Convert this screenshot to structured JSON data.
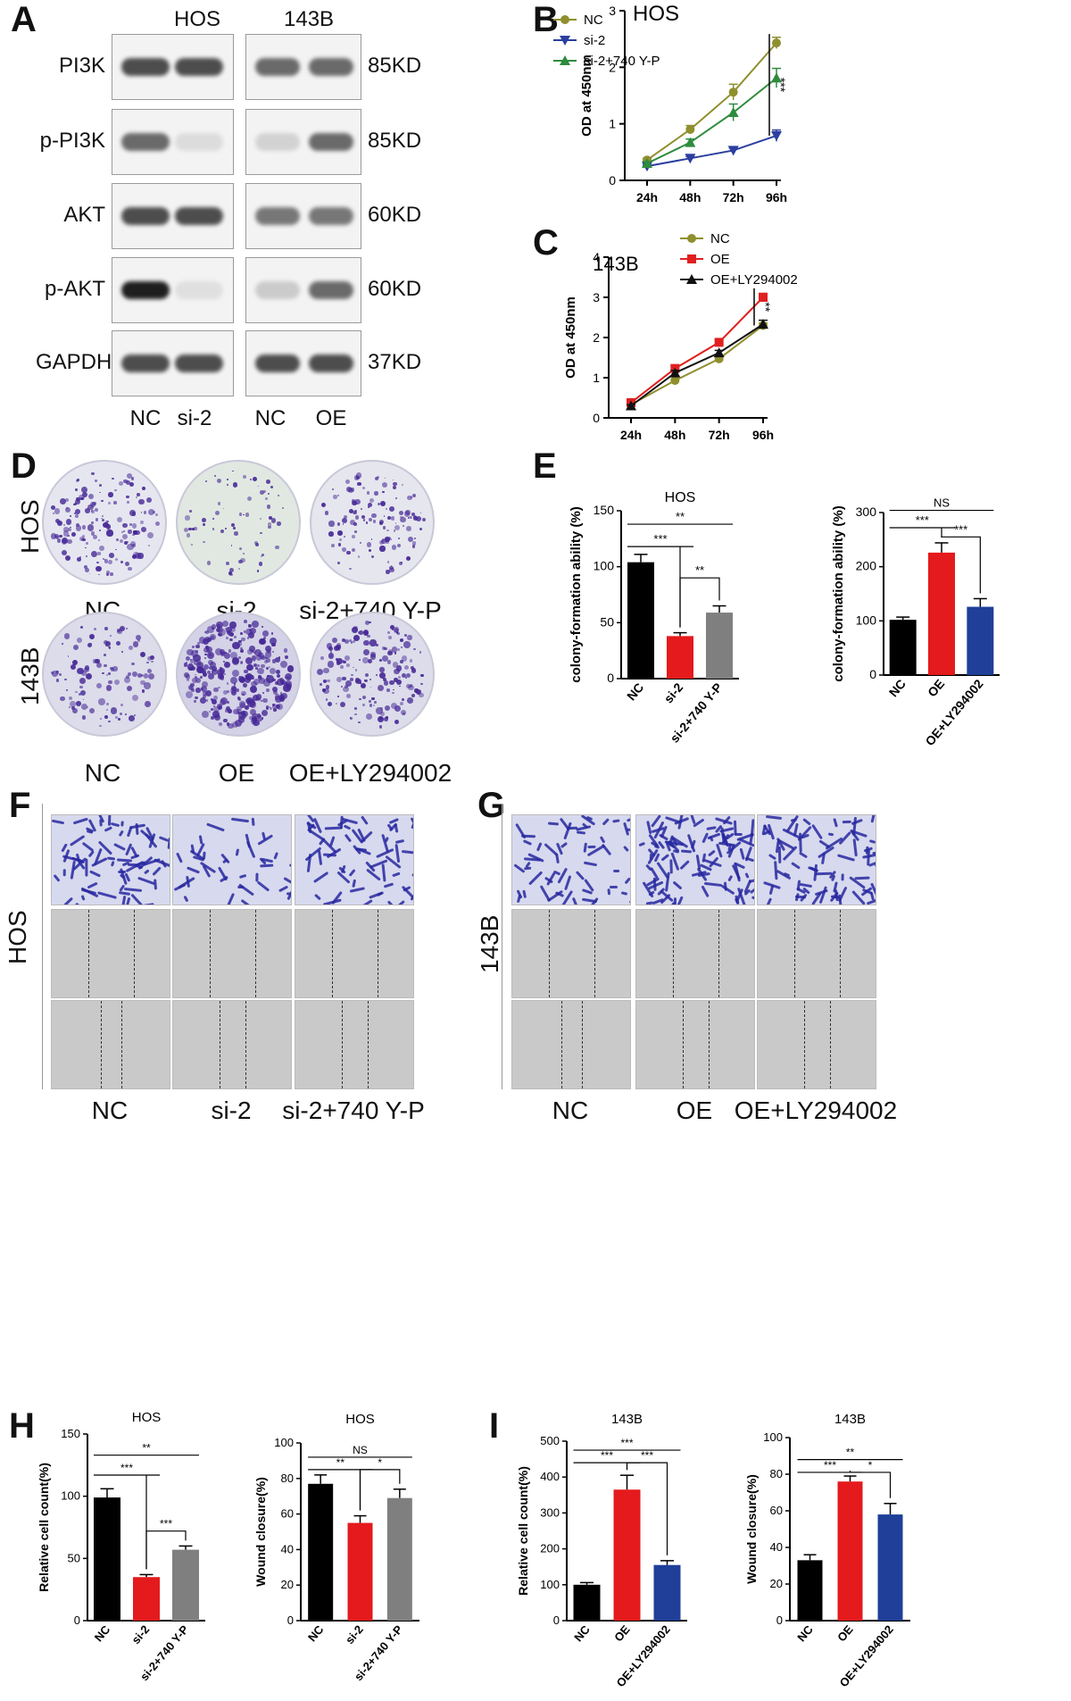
{
  "panels": {
    "A": "A",
    "B": "B",
    "C": "C",
    "D": "D",
    "E": "E",
    "F": "F",
    "G": "G",
    "H": "H",
    "I": "I"
  },
  "western_blot": {
    "cell_lines": [
      "HOS",
      "143B"
    ],
    "proteins": [
      {
        "name": "PI3K",
        "size": "85KD"
      },
      {
        "name": "p-PI3K",
        "size": "85KD"
      },
      {
        "name": "AKT",
        "size": "60KD"
      },
      {
        "name": "p-AKT",
        "size": "60KD"
      },
      {
        "name": "GAPDH",
        "size": "37KD"
      }
    ],
    "lanes": [
      "NC",
      "si-2",
      "NC",
      "OE"
    ],
    "band_intensity": [
      [
        0.85,
        0.85,
        0.75,
        0.75
      ],
      [
        0.75,
        0.18,
        0.25,
        0.75
      ],
      [
        0.85,
        0.85,
        0.7,
        0.7
      ],
      [
        1.0,
        0.15,
        0.3,
        0.75
      ],
      [
        0.85,
        0.85,
        0.85,
        0.85
      ]
    ]
  },
  "colony": {
    "rows": [
      "HOS",
      "143B"
    ],
    "row1_labels": [
      "NC",
      "si-2",
      "si-2+740 Y-P"
    ],
    "row2_labels": [
      "NC",
      "OE",
      "OE+LY294002"
    ]
  },
  "migration": {
    "F_side": "HOS",
    "G_side": "143B",
    "F_labels": [
      "NC",
      "si-2",
      "si-2+740 Y-P"
    ],
    "G_labels": [
      "NC",
      "OE",
      "OE+LY294002"
    ]
  },
  "chart_data": [
    {
      "id": "B",
      "type": "line",
      "title": "HOS",
      "ylabel": "OD at 450nm",
      "xlabel": "",
      "categories": [
        "24h",
        "48h",
        "72h",
        "96h"
      ],
      "ylim": [
        0,
        3
      ],
      "yticks": [
        0,
        1,
        2,
        3
      ],
      "series": [
        {
          "name": "NC",
          "values": [
            0.36,
            0.9,
            1.56,
            2.43
          ],
          "errors": [
            0.03,
            0.07,
            0.14,
            0.1
          ],
          "color": "#8f8f2e",
          "marker": "circle"
        },
        {
          "name": "si-2",
          "values": [
            0.25,
            0.39,
            0.53,
            0.79
          ],
          "errors": [
            0.02,
            0.03,
            0.04,
            0.1
          ],
          "color": "#2a3fa0",
          "marker": "triangle-down"
        },
        {
          "name": "si-2+740 Y-P",
          "values": [
            0.3,
            0.67,
            1.2,
            1.81
          ],
          "errors": [
            0.03,
            0.06,
            0.15,
            0.17
          ],
          "color": "#2e8b3e",
          "marker": "triangle-up"
        }
      ],
      "significance": "***"
    },
    {
      "id": "C",
      "type": "line",
      "title": "143B",
      "ylabel": "OD at 450nm",
      "xlabel": "",
      "categories": [
        "24h",
        "48h",
        "72h",
        "96h"
      ],
      "ylim": [
        0,
        4
      ],
      "yticks": [
        0,
        1,
        2,
        3,
        4
      ],
      "series": [
        {
          "name": "NC",
          "values": [
            0.33,
            0.93,
            1.47,
            2.3
          ],
          "errors": [
            0.03,
            0.04,
            0.05,
            0.06
          ],
          "color": "#8f8f2e",
          "marker": "circle"
        },
        {
          "name": "OE",
          "values": [
            0.38,
            1.23,
            1.88,
            3.0
          ],
          "errors": [
            0.04,
            0.07,
            0.07,
            0.1
          ],
          "color": "#e02020",
          "marker": "square"
        },
        {
          "name": "OE+LY294002",
          "values": [
            0.3,
            1.12,
            1.62,
            2.33
          ],
          "errors": [
            0.03,
            0.06,
            0.06,
            0.1
          ],
          "color": "#111111",
          "marker": "triangle-up"
        }
      ],
      "significance": "**"
    },
    {
      "id": "E1",
      "type": "bar",
      "title": "HOS",
      "ylabel": "colony-formation ability (%)",
      "categories": [
        "NC",
        "si-2",
        "si-2+740 Y-P"
      ],
      "values": [
        104,
        38,
        59
      ],
      "errors": [
        7,
        3,
        6
      ],
      "colors": [
        "#000000",
        "#e41a1c",
        "#7f7f7f"
      ],
      "ylim": [
        0,
        150
      ],
      "yticks": [
        0,
        50,
        100,
        150
      ],
      "comparisons": [
        {
          "a": 0,
          "b": 2,
          "label": "**",
          "y": 138
        },
        {
          "a": 0,
          "b": 1,
          "label": "***",
          "y": 118
        },
        {
          "a": 1,
          "b": 2,
          "label": "**",
          "y": 90
        }
      ]
    },
    {
      "id": "E2",
      "type": "bar",
      "title": "",
      "ylabel": "colony-formation ability (%)",
      "categories": [
        "NC",
        "OE",
        "OE+LY294002"
      ],
      "values": [
        102,
        226,
        126
      ],
      "errors": [
        5,
        18,
        15
      ],
      "colors": [
        "#000000",
        "#e41a1c",
        "#1f3f99"
      ],
      "ylim": [
        0,
        300
      ],
      "yticks": [
        0,
        100,
        200,
        300
      ],
      "comparisons": [
        {
          "a": 0,
          "b": 2,
          "label": "NS",
          "y": 304
        },
        {
          "a": 0,
          "b": 1,
          "label": "***",
          "y": 272
        },
        {
          "a": 1,
          "b": 2,
          "label": "***",
          "y": 255
        }
      ]
    },
    {
      "id": "H1",
      "type": "bar",
      "title": "HOS",
      "ylabel": "Relative cell count(%)",
      "categories": [
        "NC",
        "si-2",
        "si-2+740 Y-P"
      ],
      "values": [
        99,
        35,
        57
      ],
      "errors": [
        7,
        2,
        3
      ],
      "colors": [
        "#000000",
        "#e41a1c",
        "#7f7f7f"
      ],
      "ylim": [
        0,
        150
      ],
      "yticks": [
        0,
        50,
        100,
        150
      ],
      "comparisons": [
        {
          "a": 0,
          "b": 2,
          "label": "**",
          "y": 133
        },
        {
          "a": 0,
          "b": 1,
          "label": "***",
          "y": 117
        },
        {
          "a": 1,
          "b": 2,
          "label": "***",
          "y": 72
        }
      ]
    },
    {
      "id": "H2",
      "type": "bar",
      "title": "HOS",
      "ylabel": "Wound closure(%)",
      "categories": [
        "NC",
        "si-2",
        "si-2+740 Y-P"
      ],
      "values": [
        77,
        55,
        69
      ],
      "errors": [
        5,
        4,
        5
      ],
      "colors": [
        "#000000",
        "#e41a1c",
        "#7f7f7f"
      ],
      "ylim": [
        0,
        100
      ],
      "yticks": [
        0,
        20,
        40,
        60,
        80,
        100
      ],
      "comparisons": [
        {
          "a": 0,
          "b": 2,
          "label": "NS",
          "y": 92
        },
        {
          "a": 0,
          "b": 1,
          "label": "**",
          "y": 85
        },
        {
          "a": 1,
          "b": 2,
          "label": "*",
          "y": 85
        }
      ]
    },
    {
      "id": "I1",
      "type": "bar",
      "title": "143B",
      "ylabel": "Relative cell count(%)",
      "categories": [
        "NC",
        "OE",
        "OE+LY294002"
      ],
      "values": [
        100,
        365,
        155
      ],
      "errors": [
        6,
        40,
        12
      ],
      "colors": [
        "#000000",
        "#e41a1c",
        "#1f3f99"
      ],
      "ylim": [
        0,
        500
      ],
      "yticks": [
        0,
        100,
        200,
        300,
        400,
        500
      ],
      "comparisons": [
        {
          "a": 0,
          "b": 2,
          "label": "***",
          "y": 475
        },
        {
          "a": 0,
          "b": 1,
          "label": "***",
          "y": 440
        },
        {
          "a": 1,
          "b": 2,
          "label": "***",
          "y": 440
        }
      ]
    },
    {
      "id": "I2",
      "type": "bar",
      "title": "143B",
      "ylabel": "Wound closure(%)",
      "categories": [
        "NC",
        "OE",
        "OE+LY294002"
      ],
      "values": [
        33,
        76,
        58
      ],
      "errors": [
        3,
        3,
        6
      ],
      "colors": [
        "#000000",
        "#e41a1c",
        "#1f3f99"
      ],
      "ylim": [
        0,
        100
      ],
      "yticks": [
        0,
        20,
        40,
        60,
        80,
        100
      ],
      "comparisons": [
        {
          "a": 0,
          "b": 2,
          "label": "**",
          "y": 88
        },
        {
          "a": 0,
          "b": 1,
          "label": "***",
          "y": 81
        },
        {
          "a": 1,
          "b": 2,
          "label": "*",
          "y": 81
        }
      ]
    }
  ]
}
